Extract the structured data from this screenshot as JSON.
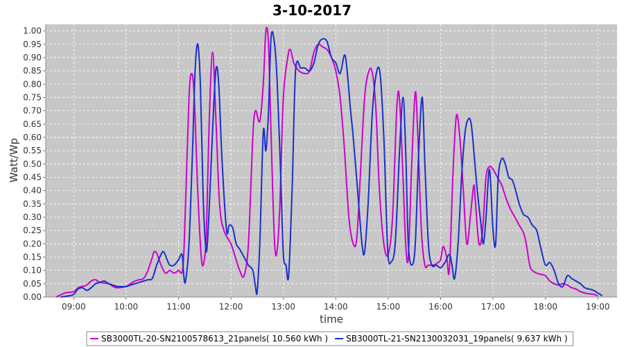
{
  "chart_data": {
    "type": "line",
    "title": "3-10-2017",
    "xlabel": "time",
    "ylabel": "Watt/Wp",
    "xlim": [
      "08:28",
      "19:22"
    ],
    "ylim": [
      0,
      1.025
    ],
    "x_ticks": [
      "09:00",
      "10:00",
      "11:00",
      "12:00",
      "13:00",
      "14:00",
      "15:00",
      "16:00",
      "17:00",
      "18:00",
      "19:00"
    ],
    "y_ticks": [
      "0.00",
      "0.05",
      "0.10",
      "0.15",
      "0.20",
      "0.25",
      "0.30",
      "0.35",
      "0.40",
      "0.45",
      "0.50",
      "0.55",
      "0.60",
      "0.65",
      "0.70",
      "0.75",
      "0.80",
      "0.85",
      "0.90",
      "0.95",
      "1.00"
    ],
    "grid": true,
    "legend_position": "bottom",
    "colors": {
      "plot_bg": "#c8c8c8",
      "grid": "#ffffff"
    },
    "series": [
      {
        "name": "SB3000TL-20-SN2100578613_21panels( 10.560 kWh )",
        "color": "#cc00cc",
        "points": [
          [
            "08:40",
            0.0
          ],
          [
            "08:50",
            0.015
          ],
          [
            "09:00",
            0.02
          ],
          [
            "09:05",
            0.035
          ],
          [
            "09:10",
            0.04
          ],
          [
            "09:15",
            0.045
          ],
          [
            "09:20",
            0.06
          ],
          [
            "09:25",
            0.065
          ],
          [
            "09:30",
            0.055
          ],
          [
            "09:40",
            0.05
          ],
          [
            "09:45",
            0.04
          ],
          [
            "09:50",
            0.035
          ],
          [
            "10:00",
            0.04
          ],
          [
            "10:05",
            0.05
          ],
          [
            "10:10",
            0.06
          ],
          [
            "10:15",
            0.065
          ],
          [
            "10:20",
            0.07
          ],
          [
            "10:25",
            0.1
          ],
          [
            "10:30",
            0.15
          ],
          [
            "10:32",
            0.17
          ],
          [
            "10:35",
            0.165
          ],
          [
            "10:40",
            0.12
          ],
          [
            "10:45",
            0.09
          ],
          [
            "10:50",
            0.1
          ],
          [
            "10:55",
            0.09
          ],
          [
            "11:00",
            0.1
          ],
          [
            "11:05",
            0.11
          ],
          [
            "11:08",
            0.35
          ],
          [
            "11:12",
            0.75
          ],
          [
            "11:15",
            0.84
          ],
          [
            "11:18",
            0.75
          ],
          [
            "11:22",
            0.4
          ],
          [
            "11:26",
            0.15
          ],
          [
            "11:29",
            0.13
          ],
          [
            "11:32",
            0.25
          ],
          [
            "11:35",
            0.65
          ],
          [
            "11:39",
            0.92
          ],
          [
            "11:43",
            0.65
          ],
          [
            "11:47",
            0.35
          ],
          [
            "11:52",
            0.25
          ],
          [
            "12:00",
            0.2
          ],
          [
            "12:05",
            0.15
          ],
          [
            "12:10",
            0.1
          ],
          [
            "12:15",
            0.08
          ],
          [
            "12:20",
            0.2
          ],
          [
            "12:25",
            0.6
          ],
          [
            "12:28",
            0.7
          ],
          [
            "12:33",
            0.66
          ],
          [
            "12:37",
            0.8
          ],
          [
            "12:40",
            1.0
          ],
          [
            "12:43",
            0.95
          ],
          [
            "12:46",
            0.6
          ],
          [
            "12:50",
            0.2
          ],
          [
            "12:53",
            0.18
          ],
          [
            "12:56",
            0.35
          ],
          [
            "13:00",
            0.75
          ],
          [
            "13:05",
            0.9
          ],
          [
            "13:08",
            0.93
          ],
          [
            "13:12",
            0.88
          ],
          [
            "13:18",
            0.85
          ],
          [
            "13:25",
            0.84
          ],
          [
            "13:30",
            0.85
          ],
          [
            "13:35",
            0.92
          ],
          [
            "13:40",
            0.95
          ],
          [
            "13:45",
            0.94
          ],
          [
            "13:50",
            0.93
          ],
          [
            "13:55",
            0.9
          ],
          [
            "14:00",
            0.85
          ],
          [
            "14:05",
            0.75
          ],
          [
            "14:10",
            0.55
          ],
          [
            "14:15",
            0.3
          ],
          [
            "14:20",
            0.2
          ],
          [
            "14:24",
            0.22
          ],
          [
            "14:28",
            0.45
          ],
          [
            "14:33",
            0.75
          ],
          [
            "14:38",
            0.85
          ],
          [
            "14:42",
            0.84
          ],
          [
            "14:46",
            0.7
          ],
          [
            "14:50",
            0.4
          ],
          [
            "14:55",
            0.2
          ],
          [
            "15:00",
            0.16
          ],
          [
            "15:05",
            0.3
          ],
          [
            "15:10",
            0.72
          ],
          [
            "15:13",
            0.74
          ],
          [
            "15:17",
            0.45
          ],
          [
            "15:20",
            0.2
          ],
          [
            "15:23",
            0.15
          ],
          [
            "15:27",
            0.5
          ],
          [
            "15:31",
            0.77
          ],
          [
            "15:34",
            0.6
          ],
          [
            "15:38",
            0.25
          ],
          [
            "15:42",
            0.12
          ],
          [
            "15:46",
            0.12
          ],
          [
            "15:52",
            0.12
          ],
          [
            "15:57",
            0.13
          ],
          [
            "16:00",
            0.14
          ],
          [
            "16:03",
            0.19
          ],
          [
            "16:07",
            0.15
          ],
          [
            "16:10",
            0.1
          ],
          [
            "16:14",
            0.45
          ],
          [
            "16:18",
            0.68
          ],
          [
            "16:22",
            0.6
          ],
          [
            "16:26",
            0.4
          ],
          [
            "16:30",
            0.2
          ],
          [
            "16:34",
            0.3
          ],
          [
            "16:38",
            0.42
          ],
          [
            "16:40",
            0.35
          ],
          [
            "16:44",
            0.2
          ],
          [
            "16:48",
            0.25
          ],
          [
            "16:52",
            0.45
          ],
          [
            "16:56",
            0.49
          ],
          [
            "17:00",
            0.48
          ],
          [
            "17:05",
            0.45
          ],
          [
            "17:10",
            0.42
          ],
          [
            "17:15",
            0.37
          ],
          [
            "17:20",
            0.33
          ],
          [
            "17:25",
            0.3
          ],
          [
            "17:30",
            0.27
          ],
          [
            "17:35",
            0.24
          ],
          [
            "17:38",
            0.2
          ],
          [
            "17:42",
            0.12
          ],
          [
            "17:45",
            0.1
          ],
          [
            "17:50",
            0.09
          ],
          [
            "17:55",
            0.085
          ],
          [
            "18:00",
            0.08
          ],
          [
            "18:05",
            0.06
          ],
          [
            "18:10",
            0.05
          ],
          [
            "18:15",
            0.045
          ],
          [
            "18:20",
            0.05
          ],
          [
            "18:25",
            0.045
          ],
          [
            "18:30",
            0.035
          ],
          [
            "18:35",
            0.03
          ],
          [
            "18:40",
            0.02
          ],
          [
            "18:45",
            0.015
          ],
          [
            "18:50",
            0.012
          ],
          [
            "18:55",
            0.01
          ],
          [
            "19:00",
            0.005
          ]
        ]
      },
      {
        "name": "SB3000TL-21-SN2130032031_19panels( 9.637 kWh )",
        "color": "#1a2ecc",
        "points": [
          [
            "08:45",
            0.0
          ],
          [
            "08:55",
            0.005
          ],
          [
            "09:00",
            0.01
          ],
          [
            "09:05",
            0.03
          ],
          [
            "09:10",
            0.035
          ],
          [
            "09:15",
            0.025
          ],
          [
            "09:20",
            0.035
          ],
          [
            "09:25",
            0.05
          ],
          [
            "09:30",
            0.055
          ],
          [
            "09:35",
            0.06
          ],
          [
            "09:40",
            0.05
          ],
          [
            "09:45",
            0.045
          ],
          [
            "09:50",
            0.04
          ],
          [
            "10:00",
            0.04
          ],
          [
            "10:05",
            0.045
          ],
          [
            "10:10",
            0.05
          ],
          [
            "10:15",
            0.055
          ],
          [
            "10:20",
            0.06
          ],
          [
            "10:25",
            0.065
          ],
          [
            "10:30",
            0.07
          ],
          [
            "10:35",
            0.12
          ],
          [
            "10:40",
            0.16
          ],
          [
            "10:43",
            0.17
          ],
          [
            "10:47",
            0.14
          ],
          [
            "10:50",
            0.12
          ],
          [
            "10:55",
            0.12
          ],
          [
            "11:00",
            0.14
          ],
          [
            "11:04",
            0.16
          ],
          [
            "11:06",
            0.08
          ],
          [
            "11:08",
            0.06
          ],
          [
            "11:12",
            0.2
          ],
          [
            "11:16",
            0.55
          ],
          [
            "11:19",
            0.85
          ],
          [
            "11:22",
            0.95
          ],
          [
            "11:25",
            0.8
          ],
          [
            "11:28",
            0.4
          ],
          [
            "11:31",
            0.19
          ],
          [
            "11:33",
            0.2
          ],
          [
            "11:36",
            0.4
          ],
          [
            "11:40",
            0.7
          ],
          [
            "11:43",
            0.86
          ],
          [
            "11:46",
            0.8
          ],
          [
            "11:50",
            0.5
          ],
          [
            "11:55",
            0.25
          ],
          [
            "11:58",
            0.27
          ],
          [
            "12:02",
            0.26
          ],
          [
            "12:06",
            0.2
          ],
          [
            "12:10",
            0.18
          ],
          [
            "12:15",
            0.15
          ],
          [
            "12:20",
            0.12
          ],
          [
            "12:25",
            0.1
          ],
          [
            "12:28",
            0.04
          ],
          [
            "12:30",
            0.02
          ],
          [
            "12:33",
            0.2
          ],
          [
            "12:37",
            0.62
          ],
          [
            "12:40",
            0.55
          ],
          [
            "12:43",
            0.7
          ],
          [
            "12:46",
            0.98
          ],
          [
            "12:50",
            0.95
          ],
          [
            "12:53",
            0.8
          ],
          [
            "12:57",
            0.45
          ],
          [
            "13:00",
            0.16
          ],
          [
            "13:03",
            0.12
          ],
          [
            "13:06",
            0.08
          ],
          [
            "13:10",
            0.4
          ],
          [
            "13:14",
            0.85
          ],
          [
            "13:20",
            0.86
          ],
          [
            "13:25",
            0.86
          ],
          [
            "13:30",
            0.85
          ],
          [
            "13:35",
            0.88
          ],
          [
            "13:40",
            0.95
          ],
          [
            "13:45",
            0.97
          ],
          [
            "13:50",
            0.96
          ],
          [
            "13:55",
            0.9
          ],
          [
            "14:00",
            0.88
          ],
          [
            "14:05",
            0.84
          ],
          [
            "14:10",
            0.91
          ],
          [
            "14:13",
            0.85
          ],
          [
            "14:17",
            0.7
          ],
          [
            "14:20",
            0.6
          ],
          [
            "14:25",
            0.4
          ],
          [
            "14:30",
            0.2
          ],
          [
            "14:33",
            0.17
          ],
          [
            "14:37",
            0.35
          ],
          [
            "14:42",
            0.7
          ],
          [
            "14:47",
            0.85
          ],
          [
            "14:51",
            0.83
          ],
          [
            "14:55",
            0.6
          ],
          [
            "14:58",
            0.3
          ],
          [
            "15:00",
            0.15
          ],
          [
            "15:03",
            0.13
          ],
          [
            "15:08",
            0.2
          ],
          [
            "15:13",
            0.55
          ],
          [
            "15:17",
            0.75
          ],
          [
            "15:20",
            0.55
          ],
          [
            "15:23",
            0.2
          ],
          [
            "15:27",
            0.12
          ],
          [
            "15:31",
            0.2
          ],
          [
            "15:35",
            0.55
          ],
          [
            "15:39",
            0.75
          ],
          [
            "15:42",
            0.5
          ],
          [
            "15:46",
            0.2
          ],
          [
            "15:50",
            0.12
          ],
          [
            "15:55",
            0.12
          ],
          [
            "16:00",
            0.11
          ],
          [
            "16:05",
            0.13
          ],
          [
            "16:10",
            0.16
          ],
          [
            "16:13",
            0.12
          ],
          [
            "16:16",
            0.07
          ],
          [
            "16:20",
            0.2
          ],
          [
            "16:24",
            0.45
          ],
          [
            "16:28",
            0.62
          ],
          [
            "16:32",
            0.67
          ],
          [
            "16:35",
            0.65
          ],
          [
            "16:38",
            0.55
          ],
          [
            "16:42",
            0.4
          ],
          [
            "16:46",
            0.28
          ],
          [
            "16:49",
            0.2
          ],
          [
            "16:52",
            0.3
          ],
          [
            "16:56",
            0.48
          ],
          [
            "17:00",
            0.25
          ],
          [
            "17:03",
            0.2
          ],
          [
            "17:06",
            0.45
          ],
          [
            "17:10",
            0.52
          ],
          [
            "17:14",
            0.5
          ],
          [
            "17:18",
            0.45
          ],
          [
            "17:22",
            0.44
          ],
          [
            "17:26",
            0.4
          ],
          [
            "17:30",
            0.35
          ],
          [
            "17:35",
            0.31
          ],
          [
            "17:40",
            0.3
          ],
          [
            "17:45",
            0.27
          ],
          [
            "17:50",
            0.25
          ],
          [
            "17:55",
            0.18
          ],
          [
            "18:00",
            0.12
          ],
          [
            "18:05",
            0.13
          ],
          [
            "18:10",
            0.1
          ],
          [
            "18:15",
            0.05
          ],
          [
            "18:20",
            0.04
          ],
          [
            "18:25",
            0.08
          ],
          [
            "18:30",
            0.07
          ],
          [
            "18:35",
            0.06
          ],
          [
            "18:40",
            0.05
          ],
          [
            "18:45",
            0.035
          ],
          [
            "18:50",
            0.03
          ],
          [
            "18:55",
            0.025
          ],
          [
            "19:00",
            0.015
          ],
          [
            "19:05",
            0.005
          ]
        ]
      }
    ]
  }
}
